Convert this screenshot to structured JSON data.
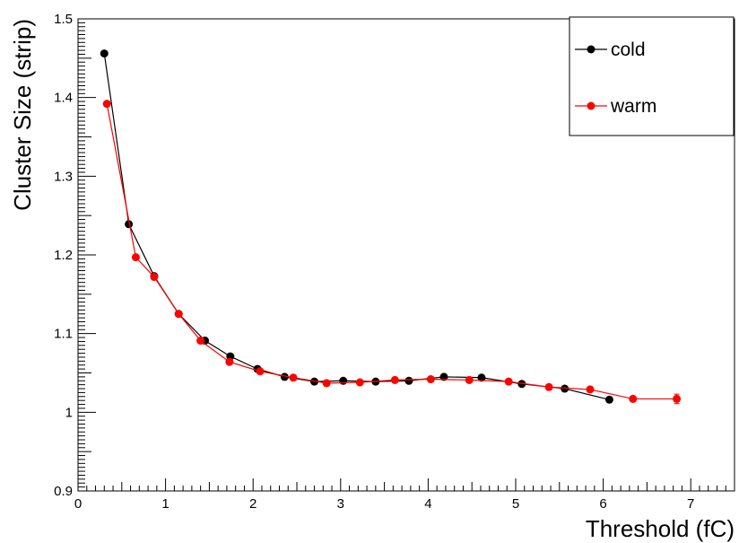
{
  "chart_data": {
    "type": "scatter",
    "title": "",
    "xlabel": "Threshold (fC)",
    "ylabel": "Cluster Size (strip)",
    "xlim": [
      0,
      7.5
    ],
    "ylim": [
      0.9,
      1.5
    ],
    "x_ticks": [
      "0",
      "1",
      "2",
      "3",
      "4",
      "5",
      "6",
      "7"
    ],
    "y_ticks": [
      "0.9",
      "1",
      "1.1",
      "1.2",
      "1.3",
      "1.4",
      "1.5"
    ],
    "grid": false,
    "legend_position": "top-right",
    "series": [
      {
        "name": "cold",
        "color": "#000000",
        "x": [
          0.3,
          0.58,
          0.87,
          1.15,
          1.45,
          1.74,
          2.05,
          2.36,
          2.7,
          3.03,
          3.4,
          3.78,
          4.18,
          4.61,
          5.07,
          5.56,
          6.07
        ],
        "y": [
          1.456,
          1.239,
          1.173,
          1.125,
          1.091,
          1.071,
          1.055,
          1.045,
          1.039,
          1.04,
          1.039,
          1.04,
          1.045,
          1.044,
          1.036,
          1.03,
          1.016
        ]
      },
      {
        "name": "warm",
        "color": "#ff0000",
        "x": [
          0.33,
          0.66,
          0.87,
          1.15,
          1.4,
          1.73,
          2.08,
          2.46,
          2.84,
          3.22,
          3.62,
          4.03,
          4.47,
          4.92,
          5.38,
          5.85,
          6.34,
          6.84
        ],
        "y": [
          1.392,
          1.197,
          1.172,
          1.125,
          1.091,
          1.064,
          1.052,
          1.044,
          1.037,
          1.038,
          1.041,
          1.042,
          1.041,
          1.039,
          1.032,
          1.029,
          1.017,
          1.017
        ],
        "yerr": [
          0,
          0,
          0,
          0,
          0,
          0,
          0,
          0,
          0,
          0,
          0,
          0,
          0,
          0,
          0,
          0,
          0,
          0.006
        ]
      }
    ]
  }
}
